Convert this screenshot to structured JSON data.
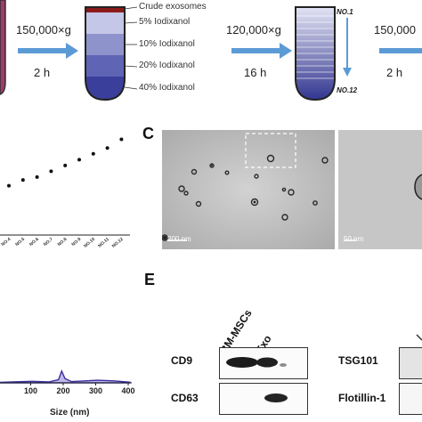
{
  "panel_a": {
    "tube1_labels": {
      "crude": "Crude exosomes",
      "iodix5": "5% Iodixanol",
      "iodix10": "10% Iodixanol",
      "iodix20": "20% Iodixanol",
      "iodix40": "40% Iodixanol"
    },
    "tube2_labels": {
      "top": "NO.1",
      "bottom": "NO.12"
    },
    "step1": {
      "speed": "150,000×g",
      "time": "2 h"
    },
    "step2": {
      "speed": "120,000×g",
      "time": "16 h"
    },
    "step3": {
      "speed": "150,000",
      "time": "2 h"
    },
    "colors": {
      "arrow": "#5b9bd5",
      "gradient_dark": "#2b2f8c",
      "gradient_light": "#d9dbf2",
      "crude_band": "#8b1a1a"
    }
  },
  "panel_b": {
    "fraction_labels": [
      "NO.4",
      "NO.5",
      "NO.6",
      "NO.7",
      "NO.8",
      "NO.9",
      "NO.10",
      "NO.11",
      "NO.12"
    ],
    "chart_data": {
      "type": "scatter",
      "x": [
        "NO.4",
        "NO.5",
        "NO.6",
        "NO.7",
        "NO.8",
        "NO.9",
        "NO.10",
        "NO.11",
        "NO.12"
      ],
      "series": [
        {
          "values": [
            1.17,
            1.19,
            1.2,
            1.22,
            1.24,
            1.26,
            1.28,
            1.3,
            1.33
          ]
        }
      ],
      "xlabel": "",
      "ylabel": ""
    }
  },
  "panel_c": {
    "letter": "C",
    "scale_left": "200 nm",
    "scale_right": "50 nm"
  },
  "panel_d": {
    "xlabel": "Size (nm)",
    "ticks": [
      "100",
      "200",
      "300",
      "400"
    ],
    "chart_data": {
      "type": "area",
      "x": [
        0,
        50,
        100,
        150,
        180,
        190,
        200,
        220,
        250,
        300,
        350,
        400
      ],
      "series": [
        {
          "values": [
            0.02,
            0.05,
            0.07,
            0.04,
            0.15,
            0.55,
            0.2,
            0.06,
            0.08,
            0.12,
            0.09,
            0.03
          ]
        }
      ],
      "xlabel": "Size (nm)",
      "ylabel": "",
      "xlim": [
        0,
        400
      ]
    }
  },
  "panel_e": {
    "letter": "E",
    "col_bm": "BM-MSCs",
    "col_exo": "Exo",
    "row_cd9": "CD9",
    "row_cd63": "CD63",
    "row_tsg101": "TSG101",
    "row_flotillin": "Flotillin-1"
  }
}
